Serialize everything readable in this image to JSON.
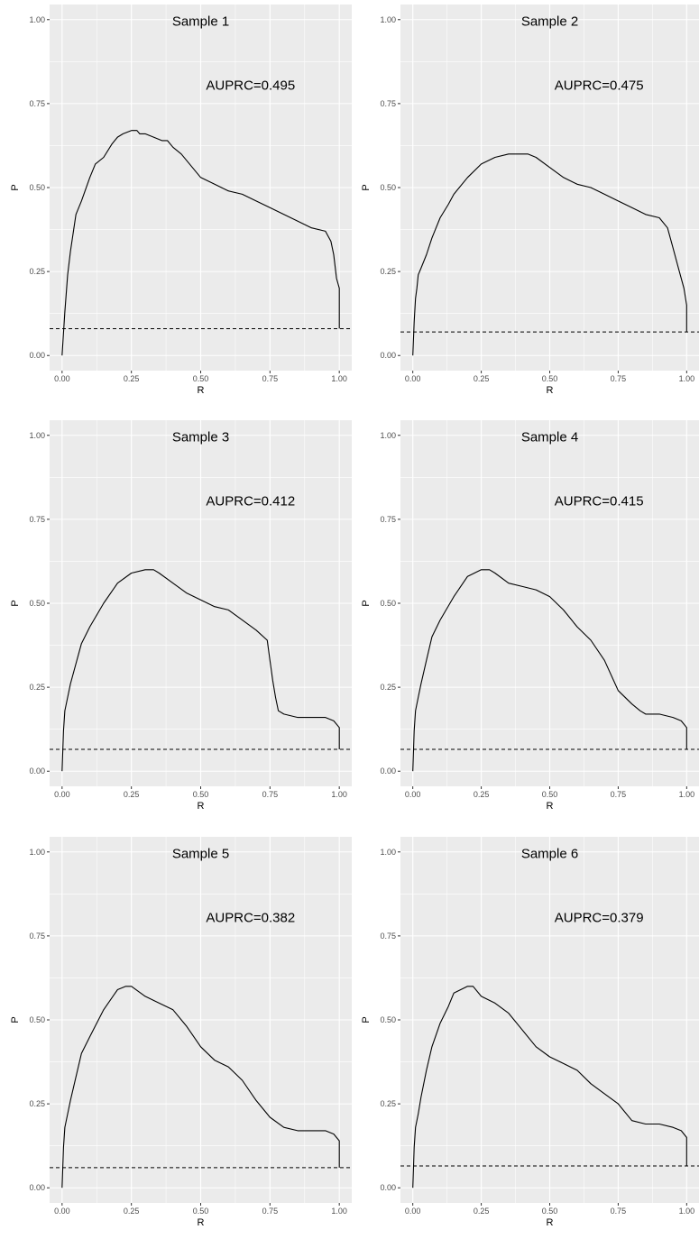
{
  "chart_data": [
    {
      "type": "line",
      "xlabel": "R",
      "ylabel": "P",
      "xlim": [
        0,
        1
      ],
      "ylim": [
        0,
        1
      ],
      "xticks": [
        "0.00",
        "0.25",
        "0.50",
        "0.75",
        "1.00"
      ],
      "yticks": [
        "0.00",
        "0.25",
        "0.50",
        "0.75",
        "1.00"
      ],
      "grid": true,
      "annotations": [
        "Sample 1",
        "AUPRC=0.495"
      ],
      "baseline": 0.08,
      "x": [
        0,
        0.01,
        0.02,
        0.03,
        0.05,
        0.07,
        0.1,
        0.12,
        0.15,
        0.18,
        0.2,
        0.22,
        0.25,
        0.27,
        0.28,
        0.3,
        0.33,
        0.36,
        0.38,
        0.4,
        0.43,
        0.45,
        0.47,
        0.5,
        0.55,
        0.6,
        0.65,
        0.7,
        0.75,
        0.8,
        0.85,
        0.9,
        0.95,
        0.97,
        0.98,
        0.99,
        1.0,
        1.0,
        1.0
      ],
      "y": [
        0,
        0.13,
        0.24,
        0.31,
        0.42,
        0.46,
        0.53,
        0.57,
        0.59,
        0.63,
        0.65,
        0.66,
        0.67,
        0.67,
        0.66,
        0.66,
        0.65,
        0.64,
        0.64,
        0.62,
        0.6,
        0.58,
        0.56,
        0.53,
        0.51,
        0.49,
        0.48,
        0.46,
        0.44,
        0.42,
        0.4,
        0.38,
        0.37,
        0.34,
        0.3,
        0.23,
        0.2,
        0.1,
        0.08
      ]
    },
    {
      "type": "line",
      "xlabel": "R",
      "ylabel": "P",
      "xlim": [
        0,
        1
      ],
      "ylim": [
        0,
        1
      ],
      "xticks": [
        "0.00",
        "0.25",
        "0.50",
        "0.75",
        "1.00"
      ],
      "yticks": [
        "0.00",
        "0.25",
        "0.50",
        "0.75",
        "1.00"
      ],
      "grid": true,
      "annotations": [
        "Sample 2",
        "AUPRC=0.475"
      ],
      "baseline": 0.07,
      "x": [
        0,
        0.005,
        0.01,
        0.015,
        0.02,
        0.03,
        0.05,
        0.07,
        0.1,
        0.13,
        0.15,
        0.2,
        0.25,
        0.3,
        0.35,
        0.4,
        0.42,
        0.45,
        0.5,
        0.55,
        0.6,
        0.65,
        0.7,
        0.75,
        0.8,
        0.85,
        0.9,
        0.93,
        0.95,
        0.97,
        0.99,
        1.0,
        1.0
      ],
      "y": [
        0,
        0.1,
        0.17,
        0.2,
        0.24,
        0.26,
        0.3,
        0.35,
        0.41,
        0.45,
        0.48,
        0.53,
        0.57,
        0.59,
        0.6,
        0.6,
        0.6,
        0.59,
        0.56,
        0.53,
        0.51,
        0.5,
        0.48,
        0.46,
        0.44,
        0.42,
        0.41,
        0.38,
        0.32,
        0.26,
        0.2,
        0.15,
        0.07
      ]
    },
    {
      "type": "line",
      "xlabel": "R",
      "ylabel": "P",
      "xlim": [
        0,
        1
      ],
      "ylim": [
        0,
        1
      ],
      "xticks": [
        "0.00",
        "0.25",
        "0.50",
        "0.75",
        "1.00"
      ],
      "yticks": [
        "0.00",
        "0.25",
        "0.50",
        "0.75",
        "1.00"
      ],
      "grid": true,
      "annotations": [
        "Sample 3",
        "AUPRC=0.412"
      ],
      "baseline": 0.065,
      "x": [
        0,
        0.005,
        0.01,
        0.02,
        0.03,
        0.05,
        0.07,
        0.1,
        0.15,
        0.2,
        0.25,
        0.3,
        0.33,
        0.35,
        0.4,
        0.45,
        0.5,
        0.55,
        0.6,
        0.65,
        0.7,
        0.74,
        0.75,
        0.76,
        0.77,
        0.78,
        0.8,
        0.85,
        0.9,
        0.95,
        0.98,
        1.0,
        1.0
      ],
      "y": [
        0,
        0.12,
        0.18,
        0.22,
        0.26,
        0.32,
        0.38,
        0.43,
        0.5,
        0.56,
        0.59,
        0.6,
        0.6,
        0.59,
        0.56,
        0.53,
        0.51,
        0.49,
        0.48,
        0.45,
        0.42,
        0.39,
        0.33,
        0.27,
        0.22,
        0.18,
        0.17,
        0.16,
        0.16,
        0.16,
        0.15,
        0.13,
        0.065
      ]
    },
    {
      "type": "line",
      "xlabel": "R",
      "ylabel": "P",
      "xlim": [
        0,
        1
      ],
      "ylim": [
        0,
        1
      ],
      "xticks": [
        "0.00",
        "0.25",
        "0.50",
        "0.75",
        "1.00"
      ],
      "yticks": [
        "0.00",
        "0.25",
        "0.50",
        "0.75",
        "1.00"
      ],
      "grid": true,
      "annotations": [
        "Sample 4",
        "AUPRC=0.415"
      ],
      "baseline": 0.065,
      "x": [
        0,
        0.005,
        0.01,
        0.02,
        0.03,
        0.05,
        0.07,
        0.1,
        0.15,
        0.2,
        0.25,
        0.28,
        0.3,
        0.35,
        0.4,
        0.45,
        0.5,
        0.55,
        0.6,
        0.65,
        0.7,
        0.75,
        0.8,
        0.83,
        0.85,
        0.9,
        0.95,
        0.98,
        1.0,
        1.0
      ],
      "y": [
        0,
        0.12,
        0.18,
        0.22,
        0.26,
        0.33,
        0.4,
        0.45,
        0.52,
        0.58,
        0.6,
        0.6,
        0.59,
        0.56,
        0.55,
        0.54,
        0.52,
        0.48,
        0.43,
        0.39,
        0.33,
        0.24,
        0.2,
        0.18,
        0.17,
        0.17,
        0.16,
        0.15,
        0.13,
        0.065
      ]
    },
    {
      "type": "line",
      "xlabel": "R",
      "ylabel": "P",
      "xlim": [
        0,
        1
      ],
      "ylim": [
        0,
        1
      ],
      "xticks": [
        "0.00",
        "0.25",
        "0.50",
        "0.75",
        "1.00"
      ],
      "yticks": [
        "0.00",
        "0.25",
        "0.50",
        "0.75",
        "1.00"
      ],
      "grid": true,
      "annotations": [
        "Sample 5",
        "AUPRC=0.382"
      ],
      "baseline": 0.06,
      "x": [
        0,
        0.005,
        0.01,
        0.02,
        0.03,
        0.05,
        0.07,
        0.1,
        0.15,
        0.2,
        0.23,
        0.25,
        0.3,
        0.35,
        0.4,
        0.45,
        0.5,
        0.55,
        0.6,
        0.65,
        0.7,
        0.75,
        0.8,
        0.85,
        0.9,
        0.95,
        0.98,
        1.0,
        1.0
      ],
      "y": [
        0,
        0.12,
        0.18,
        0.22,
        0.26,
        0.33,
        0.4,
        0.45,
        0.53,
        0.59,
        0.6,
        0.6,
        0.57,
        0.55,
        0.53,
        0.48,
        0.42,
        0.38,
        0.36,
        0.32,
        0.26,
        0.21,
        0.18,
        0.17,
        0.17,
        0.17,
        0.16,
        0.14,
        0.06
      ]
    },
    {
      "type": "line",
      "xlabel": "R",
      "ylabel": "P",
      "xlim": [
        0,
        1
      ],
      "ylim": [
        0,
        1
      ],
      "xticks": [
        "0.00",
        "0.25",
        "0.50",
        "0.75",
        "1.00"
      ],
      "yticks": [
        "0.00",
        "0.25",
        "0.50",
        "0.75",
        "1.00"
      ],
      "grid": true,
      "annotations": [
        "Sample 6",
        "AUPRC=0.379"
      ],
      "baseline": 0.065,
      "x": [
        0,
        0.005,
        0.01,
        0.02,
        0.03,
        0.05,
        0.07,
        0.1,
        0.13,
        0.15,
        0.2,
        0.22,
        0.25,
        0.3,
        0.35,
        0.4,
        0.45,
        0.5,
        0.55,
        0.6,
        0.65,
        0.7,
        0.75,
        0.8,
        0.85,
        0.9,
        0.95,
        0.98,
        1.0,
        1.0
      ],
      "y": [
        0,
        0.12,
        0.18,
        0.22,
        0.27,
        0.35,
        0.42,
        0.49,
        0.54,
        0.58,
        0.6,
        0.6,
        0.57,
        0.55,
        0.52,
        0.47,
        0.42,
        0.39,
        0.37,
        0.35,
        0.31,
        0.28,
        0.25,
        0.2,
        0.19,
        0.19,
        0.18,
        0.17,
        0.15,
        0.065
      ]
    }
  ]
}
